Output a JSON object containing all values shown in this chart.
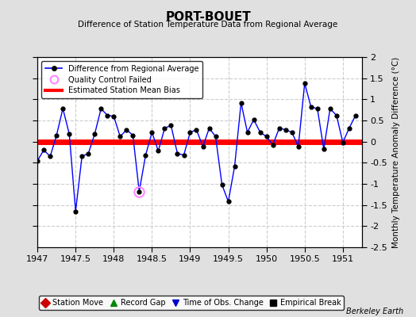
{
  "title": "PORT-BOUET",
  "subtitle": "Difference of Station Temperature Data from Regional Average",
  "ylabel": "Monthly Temperature Anomaly Difference (°C)",
  "xlabel_credit": "Berkeley Earth",
  "bias": 0.0,
  "xlim": [
    1947,
    1951.25
  ],
  "ylim": [
    -2.5,
    2.0
  ],
  "yticks": [
    -2.0,
    -1.5,
    -1.0,
    -0.5,
    0.0,
    0.5,
    1.0,
    1.5,
    2.0
  ],
  "xticks": [
    1947,
    1947.5,
    1948,
    1948.5,
    1949,
    1949.5,
    1950,
    1950.5,
    1951
  ],
  "xtick_labels": [
    "1947",
    "1947.5",
    "1948",
    "1948.5",
    "1949",
    "1949.5",
    "1950",
    "1950.5",
    "1951"
  ],
  "line_color": "#0000ff",
  "marker_color": "#000000",
  "bias_color": "#ff0000",
  "qc_color": "#ff88ff",
  "background_color": "#ffffff",
  "grid_color": "#cccccc",
  "fig_color": "#e0e0e0",
  "times": [
    1947.0,
    1947.083,
    1947.167,
    1947.25,
    1947.333,
    1947.417,
    1947.5,
    1947.583,
    1947.667,
    1947.75,
    1947.833,
    1947.917,
    1948.0,
    1948.083,
    1948.167,
    1948.25,
    1948.333,
    1948.417,
    1948.5,
    1948.583,
    1948.667,
    1948.75,
    1948.833,
    1948.917,
    1949.0,
    1949.083,
    1949.167,
    1949.25,
    1949.333,
    1949.417,
    1949.5,
    1949.583,
    1949.667,
    1949.75,
    1949.833,
    1949.917,
    1950.0,
    1950.083,
    1950.167,
    1950.25,
    1950.333,
    1950.417,
    1950.5,
    1950.583,
    1950.667,
    1950.75,
    1950.833,
    1950.917,
    1951.0,
    1951.083,
    1951.167
  ],
  "values": [
    -0.45,
    -0.2,
    -0.35,
    0.15,
    0.78,
    0.18,
    -1.65,
    -0.35,
    -0.28,
    0.18,
    0.78,
    0.62,
    0.6,
    0.12,
    0.28,
    0.15,
    -1.18,
    -0.32,
    0.22,
    -0.22,
    0.32,
    0.38,
    -0.28,
    -0.32,
    0.22,
    0.28,
    -0.12,
    0.32,
    0.12,
    -1.02,
    -1.42,
    -0.58,
    0.92,
    0.22,
    0.52,
    0.22,
    0.12,
    -0.08,
    0.32,
    0.28,
    0.22,
    -0.12,
    1.38,
    0.82,
    0.78,
    -0.18,
    0.78,
    0.62,
    -0.02,
    0.32,
    0.62
  ],
  "qc_fail_indices": [
    16
  ],
  "bottom_legend": [
    {
      "label": "Station Move",
      "marker": "D",
      "color": "#cc0000"
    },
    {
      "label": "Record Gap",
      "marker": "^",
      "color": "#008800"
    },
    {
      "label": "Time of Obs. Change",
      "marker": "v",
      "color": "#0000cc"
    },
    {
      "label": "Empirical Break",
      "marker": "s",
      "color": "#000000"
    }
  ]
}
